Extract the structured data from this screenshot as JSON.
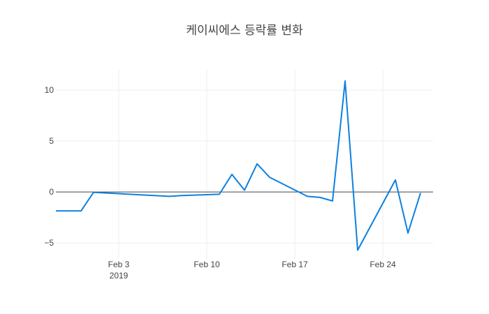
{
  "chart_data": {
    "type": "line",
    "title": "케이씨에스 등락률 변화",
    "xlabel": "",
    "ylabel": "",
    "x_axis_type": "date",
    "xlim": [
      "2019-01-29",
      "2019-02-28"
    ],
    "ylim": [
      -6.5,
      12
    ],
    "x_ticks": [
      {
        "date": "2019-02-03",
        "label": "Feb 3",
        "sublabel": "2019"
      },
      {
        "date": "2019-02-10",
        "label": "Feb 10",
        "sublabel": ""
      },
      {
        "date": "2019-02-17",
        "label": "Feb 17",
        "sublabel": ""
      },
      {
        "date": "2019-02-24",
        "label": "Feb 24",
        "sublabel": ""
      }
    ],
    "y_ticks": [
      {
        "value": 10,
        "label": "10"
      },
      {
        "value": 5,
        "label": "5"
      },
      {
        "value": 0,
        "label": "0"
      },
      {
        "value": -5,
        "label": "−5"
      }
    ],
    "grid": true,
    "series": [
      {
        "color": "#0d80e0",
        "x": [
          "2019-01-29",
          "2019-01-30",
          "2019-01-31",
          "2019-02-01",
          "2019-02-07",
          "2019-02-08",
          "2019-02-11",
          "2019-02-12",
          "2019-02-13",
          "2019-02-14",
          "2019-02-15",
          "2019-02-18",
          "2019-02-19",
          "2019-02-20",
          "2019-02-21",
          "2019-02-22",
          "2019-02-25",
          "2019-02-26",
          "2019-02-27"
        ],
        "y": [
          -1.86,
          -1.86,
          -1.86,
          -0.03,
          -0.43,
          -0.35,
          -0.22,
          1.73,
          0.18,
          2.76,
          1.44,
          -0.43,
          -0.53,
          -0.88,
          10.9,
          -5.71,
          1.18,
          -4.03,
          -0.1
        ]
      }
    ]
  }
}
